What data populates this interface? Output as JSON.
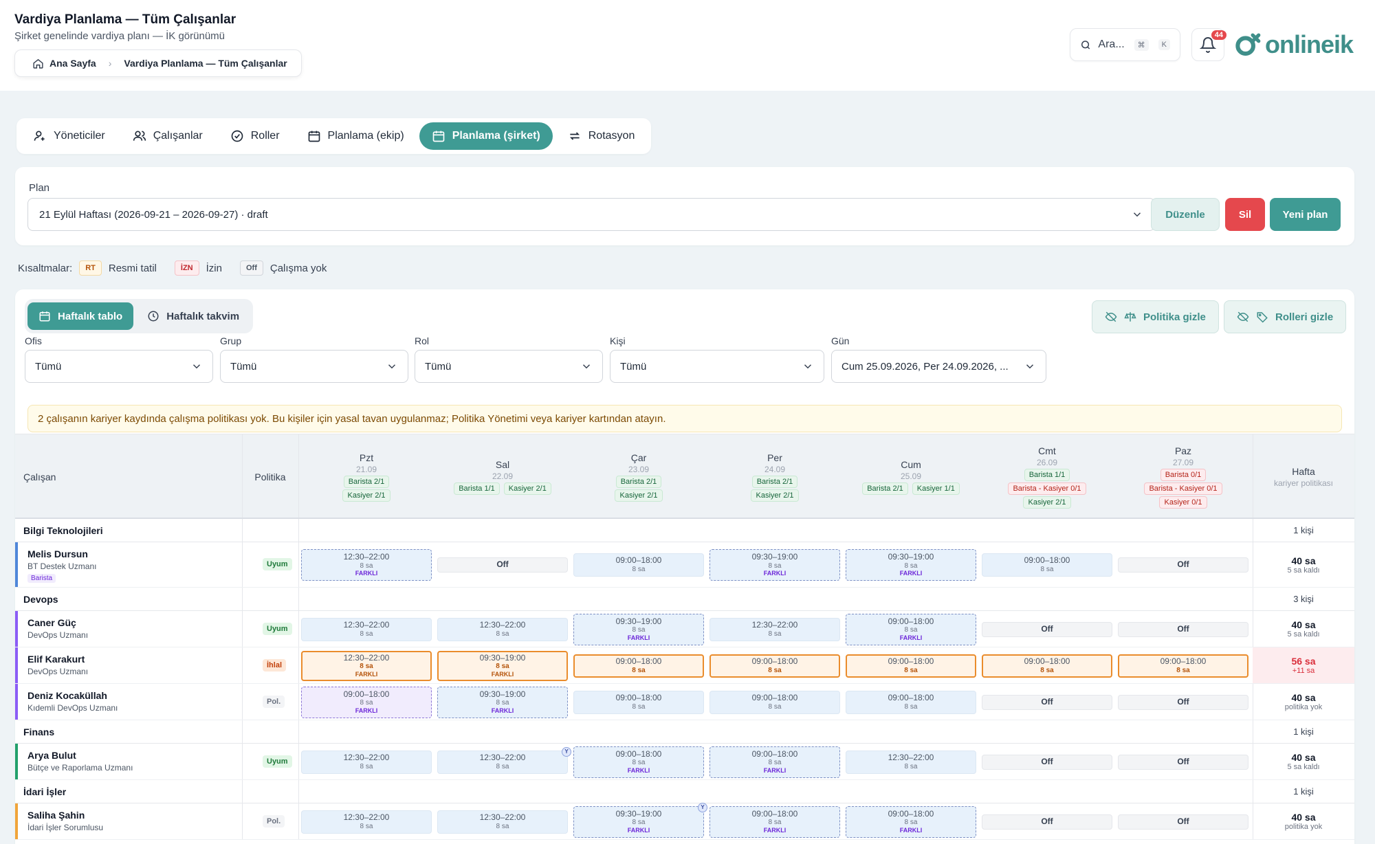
{
  "header": {
    "title": "Vardiya Planlama — Tüm Çalışanlar",
    "subtitle": "Şirket genelinde vardiya planı — İK görünümü",
    "breadcrumb": [
      "Ana Sayfa",
      "Vardiya Planlama — Tüm Çalışanlar"
    ],
    "search_placeholder": "Ara...",
    "search_kbd": [
      "⌘",
      "K"
    ],
    "notification_count": "44",
    "logo_text": "onlineik"
  },
  "tabs": [
    {
      "label": "Yöneticiler",
      "icon": "user-icon"
    },
    {
      "label": "Çalışanlar",
      "icon": "users-icon"
    },
    {
      "label": "Roller",
      "icon": "check-circle-icon"
    },
    {
      "label": "Planlama (ekip)",
      "icon": "calendar-icon"
    },
    {
      "label": "Planlama (şirket)",
      "icon": "calendar-icon",
      "active": true
    },
    {
      "label": "Rotasyon",
      "icon": "repeat-icon"
    }
  ],
  "plan": {
    "label": "Plan",
    "selected": "21 Eylül Haftası (2026-09-21 – 2026-09-27) · draft",
    "edit_label": "Düzenle",
    "delete_label": "Sil",
    "new_label": "Yeni plan"
  },
  "legend": {
    "title": "Kısaltmalar:",
    "items": [
      {
        "code": "RT",
        "label": "Resmi tatil"
      },
      {
        "code": "İZN",
        "label": "İzin"
      },
      {
        "code": "Off",
        "label": "Çalışma yok"
      }
    ]
  },
  "view": {
    "weekly_table": "Haftalık tablo",
    "weekly_calendar": "Haftalık takvim",
    "hide_policy": "Politika gizle",
    "hide_roles": "Rolleri gizle"
  },
  "filters": [
    {
      "label": "Ofis",
      "value": "Tümü"
    },
    {
      "label": "Grup",
      "value": "Tümü"
    },
    {
      "label": "Rol",
      "value": "Tümü"
    },
    {
      "label": "Kişi",
      "value": "Tümü"
    },
    {
      "label": "Gün",
      "value": "Cum 25.09.2026, Per 24.09.2026, ..."
    }
  ],
  "warning": "2 çalışanın kariyer kaydında çalışma politikası yok. Bu kişiler için yasal tavan uygulanmaz; Politika Yönetimi veya kariyer kartından atayın.",
  "table": {
    "col_employee": "Çalışan",
    "col_policy": "Politika",
    "col_week": "Hafta",
    "col_week_sub": "kariyer politikası",
    "days": [
      {
        "name": "Pzt",
        "date": "21.09",
        "reqs": [
          [
            {
              "t": "Barista 2/1"
            }
          ],
          [
            {
              "t": "Kasiyer 2/1"
            }
          ]
        ]
      },
      {
        "name": "Sal",
        "date": "22.09",
        "reqs": [
          [
            {
              "t": "Barista 1/1"
            },
            {
              "t": "Kasiyer 2/1"
            }
          ]
        ]
      },
      {
        "name": "Çar",
        "date": "23.09",
        "reqs": [
          [
            {
              "t": "Barista 2/1"
            }
          ],
          [
            {
              "t": "Kasiyer 2/1"
            }
          ]
        ]
      },
      {
        "name": "Per",
        "date": "24.09",
        "reqs": [
          [
            {
              "t": "Barista 2/1"
            }
          ],
          [
            {
              "t": "Kasiyer 2/1"
            }
          ]
        ]
      },
      {
        "name": "Cum",
        "date": "25.09",
        "reqs": [
          [
            {
              "t": "Barista 2/1"
            },
            {
              "t": "Kasiyer 1/1"
            }
          ]
        ]
      },
      {
        "name": "Cmt",
        "date": "26.09",
        "reqs": [
          [
            {
              "t": "Barista 1/1"
            }
          ],
          [
            {
              "t": "Barista - Kasiyer 0/1",
              "bad": true
            }
          ],
          [
            {
              "t": "Kasiyer 2/1"
            }
          ]
        ]
      },
      {
        "name": "Paz",
        "date": "27.09",
        "reqs": [
          [
            {
              "t": "Barista 0/1",
              "bad": true
            }
          ],
          [
            {
              "t": "Barista - Kasiyer 0/1",
              "bad": true
            }
          ],
          [
            {
              "t": "Kasiyer 0/1",
              "bad": true
            }
          ]
        ]
      }
    ],
    "groups": [
      {
        "name": "Bilgi Teknolojileri",
        "count": "1 kişi",
        "employees": [
          {
            "name": "Melis Dursun",
            "title": "BT Destek Uzmanı",
            "role": "Barista",
            "policy": "Uyum",
            "policy_kind": "uyum",
            "bar": "#4f86d9",
            "cells": [
              {
                "k": "farkli",
                "h": "12:30–22:00",
                "d": "8 sa",
                "f": "FARKLI"
              },
              {
                "k": "off",
                "t": "Off"
              },
              {
                "k": "shift",
                "h": "09:00–18:00",
                "d": "8 sa"
              },
              {
                "k": "farkli",
                "h": "09:30–19:00",
                "d": "8 sa",
                "f": "FARKLI"
              },
              {
                "k": "farkli",
                "h": "09:30–19:00",
                "d": "8 sa",
                "f": "FARKLI"
              },
              {
                "k": "shift",
                "h": "09:00–18:00",
                "d": "8 sa"
              },
              {
                "k": "off",
                "t": "Off"
              }
            ],
            "week": {
              "hours": "40 sa",
              "rest": "5 sa kaldı",
              "bad": false
            }
          }
        ]
      },
      {
        "name": "Devops",
        "count": "3 kişi",
        "employees": [
          {
            "name": "Caner Güç",
            "title": "DevOps Uzmanı",
            "policy": "Uyum",
            "policy_kind": "uyum",
            "bar": "#8b5cf6",
            "cells": [
              {
                "k": "shift",
                "h": "12:30–22:00",
                "d": "8 sa"
              },
              {
                "k": "shift",
                "h": "12:30–22:00",
                "d": "8 sa"
              },
              {
                "k": "farkli",
                "h": "09:30–19:00",
                "d": "8 sa",
                "f": "FARKLI"
              },
              {
                "k": "shift",
                "h": "12:30–22:00",
                "d": "8 sa"
              },
              {
                "k": "farkli",
                "h": "09:00–18:00",
                "d": "8 sa",
                "f": "FARKLI"
              },
              {
                "k": "off",
                "t": "Off"
              },
              {
                "k": "off",
                "t": "Off"
              }
            ],
            "week": {
              "hours": "40 sa",
              "rest": "5 sa kaldı",
              "bad": false
            }
          },
          {
            "name": "Elif Karakurt",
            "title": "DevOps Uzmanı",
            "policy": "İhlal",
            "policy_kind": "ihlal",
            "bar": "#8b5cf6",
            "cells": [
              {
                "k": "over",
                "h": "12:30–22:00",
                "d": "8 sa",
                "f": "FARKLI"
              },
              {
                "k": "over",
                "h": "09:30–19:00",
                "d": "8 sa",
                "f": "FARKLI"
              },
              {
                "k": "over",
                "h": "09:00–18:00",
                "d": "8 sa"
              },
              {
                "k": "over",
                "h": "09:00–18:00",
                "d": "8 sa"
              },
              {
                "k": "over",
                "h": "09:00–18:00",
                "d": "8 sa"
              },
              {
                "k": "over",
                "h": "09:00–18:00",
                "d": "8 sa"
              },
              {
                "k": "over",
                "h": "09:00–18:00",
                "d": "8 sa"
              }
            ],
            "week": {
              "hours": "56 sa",
              "rest": "+11 sa",
              "bad": true
            }
          },
          {
            "name": "Deniz Kocaküllah",
            "title": "Kıdemli DevOps Uzmanı",
            "policy": "Pol.",
            "policy_kind": "pol",
            "bar": "#8b5cf6",
            "cells": [
              {
                "k": "violet",
                "h": "09:00–18:00",
                "d": "8 sa",
                "f": "FARKLI"
              },
              {
                "k": "farkli",
                "h": "09:30–19:00",
                "d": "8 sa",
                "f": "FARKLI"
              },
              {
                "k": "shift",
                "h": "09:00–18:00",
                "d": "8 sa"
              },
              {
                "k": "shift",
                "h": "09:00–18:00",
                "d": "8 sa"
              },
              {
                "k": "shift",
                "h": "09:00–18:00",
                "d": "8 sa"
              },
              {
                "k": "off",
                "t": "Off"
              },
              {
                "k": "off",
                "t": "Off"
              }
            ],
            "week": {
              "hours": "40 sa",
              "rest": "politika yok",
              "bad": false
            }
          }
        ]
      },
      {
        "name": "Finans",
        "count": "1 kişi",
        "employees": [
          {
            "name": "Arya Bulut",
            "title": "Bütçe ve Raporlama Uzmanı",
            "policy": "Uyum",
            "policy_kind": "uyum",
            "bar": "#22a06b",
            "cells": [
              {
                "k": "shift",
                "h": "12:30–22:00",
                "d": "8 sa"
              },
              {
                "k": "shift",
                "h": "12:30–22:00",
                "d": "8 sa",
                "y": "Y"
              },
              {
                "k": "farkli",
                "h": "09:00–18:00",
                "d": "8 sa",
                "f": "FARKLI"
              },
              {
                "k": "farkli",
                "h": "09:00–18:00",
                "d": "8 sa",
                "f": "FARKLI"
              },
              {
                "k": "shift",
                "h": "12:30–22:00",
                "d": "8 sa"
              },
              {
                "k": "off",
                "t": "Off"
              },
              {
                "k": "off",
                "t": "Off"
              }
            ],
            "week": {
              "hours": "40 sa",
              "rest": "5 sa kaldı",
              "bad": false
            }
          }
        ]
      },
      {
        "name": "İdari İşler",
        "count": "1 kişi",
        "employees": [
          {
            "name": "Saliha Şahin",
            "title": "İdari İşler Sorumlusu",
            "policy": "Pol.",
            "policy_kind": "pol",
            "bar": "#f0a43a",
            "cells": [
              {
                "k": "shift",
                "h": "12:30–22:00",
                "d": "8 sa"
              },
              {
                "k": "shift",
                "h": "12:30–22:00",
                "d": "8 sa"
              },
              {
                "k": "farkli",
                "h": "09:30–19:00",
                "d": "8 sa",
                "f": "FARKLI",
                "y": "Y"
              },
              {
                "k": "farkli",
                "h": "09:00–18:00",
                "d": "8 sa",
                "f": "FARKLI"
              },
              {
                "k": "farkli",
                "h": "09:00–18:00",
                "d": "8 sa",
                "f": "FARKLI"
              },
              {
                "k": "off",
                "t": "Off"
              },
              {
                "k": "off",
                "t": "Off"
              }
            ],
            "week": {
              "hours": "40 sa",
              "rest": "politika yok",
              "bad": false
            }
          }
        ]
      }
    ]
  }
}
